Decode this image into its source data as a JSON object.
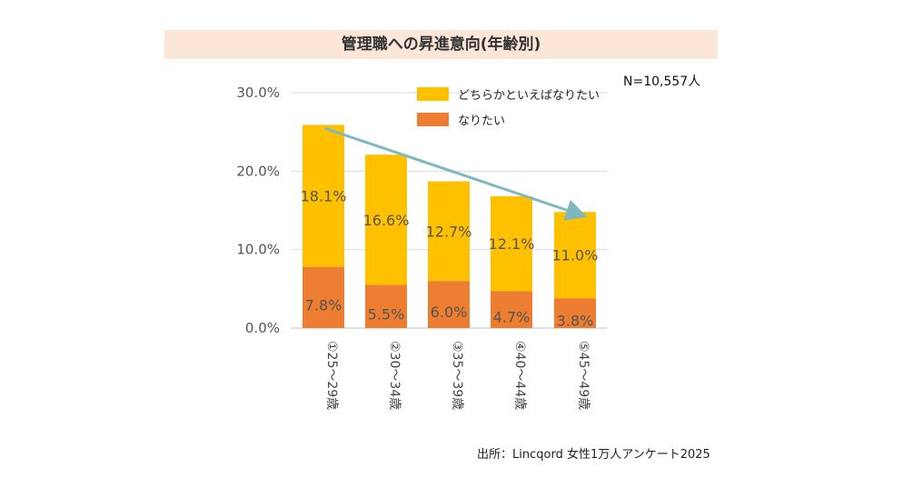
{
  "header": {
    "title": "管理職への昇進意向(年齢別)",
    "sample_size": "N=10,557人"
  },
  "footer": {
    "source": "出所：Lincqord 女性1万人アンケート2025"
  },
  "colors": {
    "upper_series": "#ffc000",
    "lower_series": "#ed7d31",
    "trend_arrow": "#7fb9bf",
    "gridline": "#d9d9d9",
    "title_bg": "#fbe6d8"
  },
  "chart_data": {
    "type": "bar",
    "stacked": true,
    "title": "管理職への昇進意向(年齢別)",
    "categories": [
      "①25～29歳",
      "②30～34歳",
      "③35～39歳",
      "④40～44歳",
      "⑤45～49歳"
    ],
    "series": [
      {
        "name": "なりたい",
        "values": [
          7.8,
          5.5,
          6.0,
          4.7,
          3.8
        ]
      },
      {
        "name": "どちらかといえばなりたい",
        "values": [
          18.1,
          16.6,
          12.7,
          12.1,
          11.0
        ]
      }
    ],
    "value_labels": [
      [
        "7.8%",
        "5.5%",
        "6.0%",
        "4.7%",
        "3.8%"
      ],
      [
        "18.1%",
        "16.6%",
        "12.7%",
        "12.1%",
        "11.0%"
      ]
    ],
    "yticks": [
      0,
      10,
      20,
      30
    ],
    "ytick_labels": [
      "0.0%",
      "10.0%",
      "20.0%",
      "30.0%"
    ],
    "ylim": [
      0,
      30
    ],
    "grid": true,
    "legend": [
      "どちらかといえばなりたい",
      "なりたい"
    ],
    "legend_position": "top-right",
    "annotation": "downward trend arrow from first to last bar",
    "xlabel": "",
    "ylabel": ""
  }
}
